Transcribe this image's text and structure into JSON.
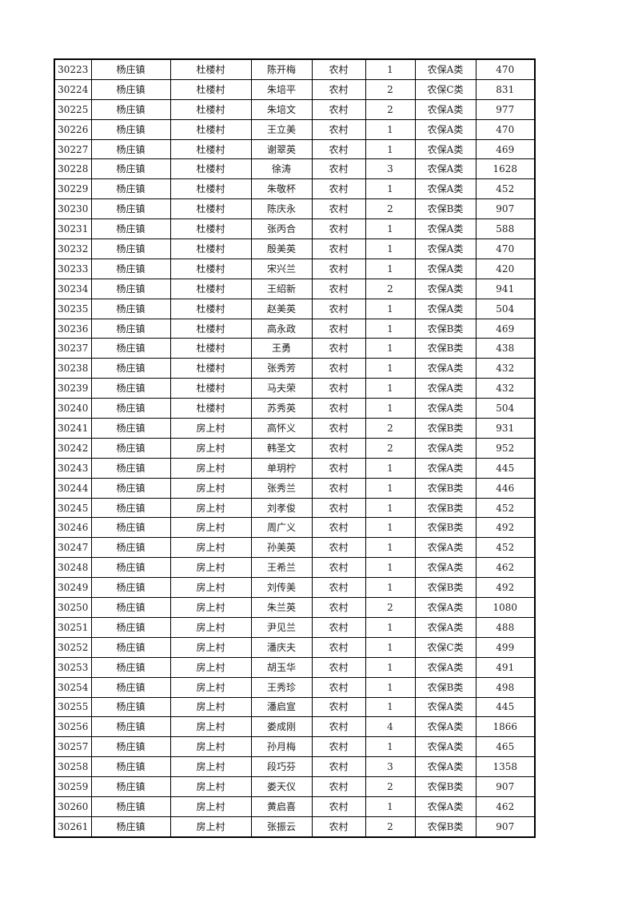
{
  "rows": [
    [
      "30223",
      "杨庄镇",
      "杜楼村",
      "陈开梅",
      "农村",
      "1",
      "农保A类",
      "470"
    ],
    [
      "30224",
      "杨庄镇",
      "杜楼村",
      "朱培平",
      "农村",
      "2",
      "农保C类",
      "831"
    ],
    [
      "30225",
      "杨庄镇",
      "杜楼村",
      "朱培文",
      "农村",
      "2",
      "农保A类",
      "977"
    ],
    [
      "30226",
      "杨庄镇",
      "杜楼村",
      "王立美",
      "农村",
      "1",
      "农保A类",
      "470"
    ],
    [
      "30227",
      "杨庄镇",
      "杜楼村",
      "谢翠英",
      "农村",
      "1",
      "农保A类",
      "469"
    ],
    [
      "30228",
      "杨庄镇",
      "杜楼村",
      "徐涛",
      "农村",
      "3",
      "农保A类",
      "1628"
    ],
    [
      "30229",
      "杨庄镇",
      "杜楼村",
      "朱敬杯",
      "农村",
      "1",
      "农保A类",
      "452"
    ],
    [
      "30230",
      "杨庄镇",
      "杜楼村",
      "陈庆永",
      "农村",
      "2",
      "农保B类",
      "907"
    ],
    [
      "30231",
      "杨庄镇",
      "杜楼村",
      "张丙合",
      "农村",
      "1",
      "农保A类",
      "588"
    ],
    [
      "30232",
      "杨庄镇",
      "杜楼村",
      "殷美英",
      "农村",
      "1",
      "农保A类",
      "470"
    ],
    [
      "30233",
      "杨庄镇",
      "杜楼村",
      "宋兴兰",
      "农村",
      "1",
      "农保A类",
      "420"
    ],
    [
      "30234",
      "杨庄镇",
      "杜楼村",
      "王绍新",
      "农村",
      "2",
      "农保A类",
      "941"
    ],
    [
      "30235",
      "杨庄镇",
      "杜楼村",
      "赵美英",
      "农村",
      "1",
      "农保A类",
      "504"
    ],
    [
      "30236",
      "杨庄镇",
      "杜楼村",
      "高永政",
      "农村",
      "1",
      "农保B类",
      "469"
    ],
    [
      "30237",
      "杨庄镇",
      "杜楼村",
      "王勇",
      "农村",
      "1",
      "农保B类",
      "438"
    ],
    [
      "30238",
      "杨庄镇",
      "杜楼村",
      "张秀芳",
      "农村",
      "1",
      "农保A类",
      "432"
    ],
    [
      "30239",
      "杨庄镇",
      "杜楼村",
      "马夫荣",
      "农村",
      "1",
      "农保A类",
      "432"
    ],
    [
      "30240",
      "杨庄镇",
      "杜楼村",
      "苏秀英",
      "农村",
      "1",
      "农保A类",
      "504"
    ],
    [
      "30241",
      "杨庄镇",
      "房上村",
      "高怀义",
      "农村",
      "2",
      "农保B类",
      "931"
    ],
    [
      "30242",
      "杨庄镇",
      "房上村",
      "韩圣文",
      "农村",
      "2",
      "农保A类",
      "952"
    ],
    [
      "30243",
      "杨庄镇",
      "房上村",
      "单玥柠",
      "农村",
      "1",
      "农保A类",
      "445"
    ],
    [
      "30244",
      "杨庄镇",
      "房上村",
      "张秀兰",
      "农村",
      "1",
      "农保B类",
      "446"
    ],
    [
      "30245",
      "杨庄镇",
      "房上村",
      "刘孝俊",
      "农村",
      "1",
      "农保B类",
      "452"
    ],
    [
      "30246",
      "杨庄镇",
      "房上村",
      "周广义",
      "农村",
      "1",
      "农保B类",
      "492"
    ],
    [
      "30247",
      "杨庄镇",
      "房上村",
      "孙美英",
      "农村",
      "1",
      "农保A类",
      "452"
    ],
    [
      "30248",
      "杨庄镇",
      "房上村",
      "王希兰",
      "农村",
      "1",
      "农保A类",
      "462"
    ],
    [
      "30249",
      "杨庄镇",
      "房上村",
      "刘传美",
      "农村",
      "1",
      "农保B类",
      "492"
    ],
    [
      "30250",
      "杨庄镇",
      "房上村",
      "朱兰英",
      "农村",
      "2",
      "农保A类",
      "1080"
    ],
    [
      "30251",
      "杨庄镇",
      "房上村",
      "尹见兰",
      "农村",
      "1",
      "农保A类",
      "488"
    ],
    [
      "30252",
      "杨庄镇",
      "房上村",
      "潘庆夫",
      "农村",
      "1",
      "农保C类",
      "499"
    ],
    [
      "30253",
      "杨庄镇",
      "房上村",
      "胡玉华",
      "农村",
      "1",
      "农保A类",
      "491"
    ],
    [
      "30254",
      "杨庄镇",
      "房上村",
      "王秀珍",
      "农村",
      "1",
      "农保B类",
      "498"
    ],
    [
      "30255",
      "杨庄镇",
      "房上村",
      "潘启宣",
      "农村",
      "1",
      "农保A类",
      "445"
    ],
    [
      "30256",
      "杨庄镇",
      "房上村",
      "娄成刚",
      "农村",
      "4",
      "农保A类",
      "1866"
    ],
    [
      "30257",
      "杨庄镇",
      "房上村",
      "孙月梅",
      "农村",
      "1",
      "农保A类",
      "465"
    ],
    [
      "30258",
      "杨庄镇",
      "房上村",
      "段巧芬",
      "农村",
      "3",
      "农保A类",
      "1358"
    ],
    [
      "30259",
      "杨庄镇",
      "房上村",
      "娄天仪",
      "农村",
      "2",
      "农保B类",
      "907"
    ],
    [
      "30260",
      "杨庄镇",
      "房上村",
      "黄启喜",
      "农村",
      "1",
      "农保A类",
      "462"
    ],
    [
      "30261",
      "杨庄镇",
      "房上村",
      "张振云",
      "农村",
      "2",
      "农保B类",
      "907"
    ]
  ]
}
